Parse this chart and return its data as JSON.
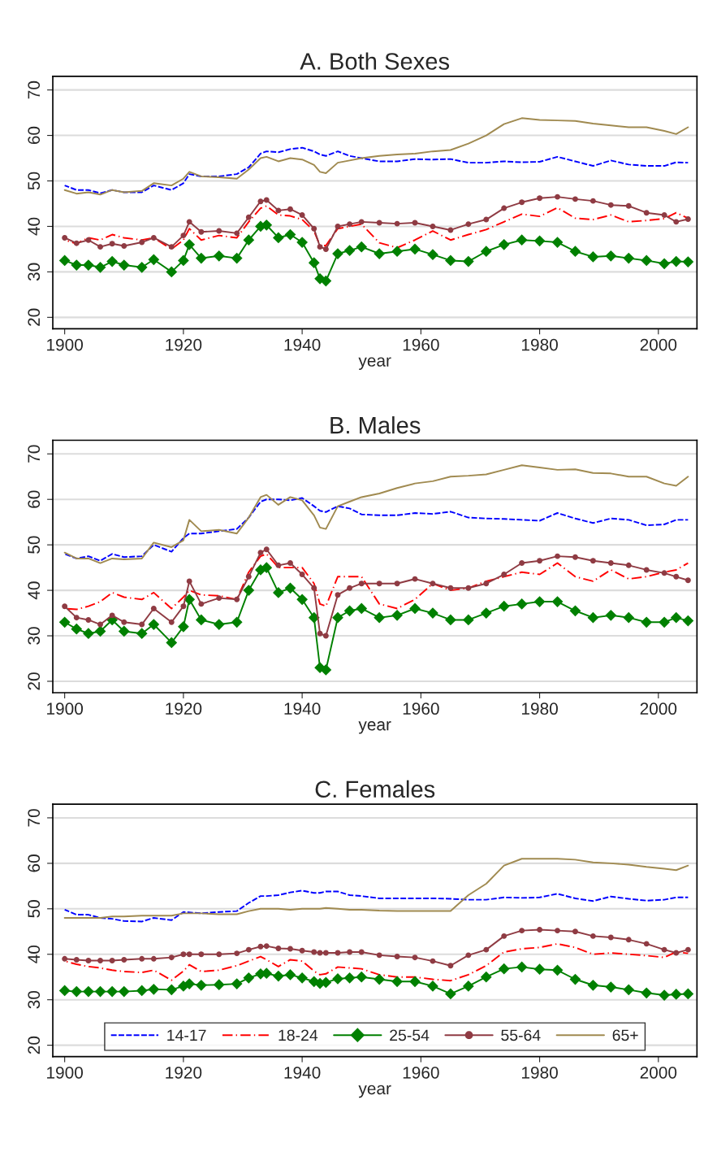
{
  "chart_data": [
    {
      "type": "line",
      "title": "A. Both Sexes",
      "xlabel": "year",
      "xlim": [
        1898,
        2006.5
      ],
      "ylim": [
        17.5,
        73
      ],
      "xticks": [
        1900,
        1920,
        1940,
        1960,
        1980,
        2000
      ],
      "yticks": [
        20,
        30,
        40,
        50,
        60,
        70
      ],
      "grid": "y",
      "legend": false,
      "x": [
        1900,
        1902,
        1904,
        1906,
        1908,
        1910,
        1913,
        1915,
        1918,
        1920,
        1921,
        1923,
        1926,
        1929,
        1931,
        1933,
        1934,
        1936,
        1938,
        1940,
        1942,
        1943,
        1944,
        1946,
        1948,
        1950,
        1953,
        1956,
        1959,
        1962,
        1965,
        1968,
        1971,
        1974,
        1977,
        1980,
        1983,
        1986,
        1989,
        1992,
        1995,
        1998,
        2001,
        2003,
        2005
      ],
      "series": [
        {
          "color": "#0000ff",
          "line_style": "dashed",
          "marker": "none",
          "values": [
            49,
            48,
            48,
            47.3,
            48,
            47.5,
            47.5,
            49,
            48,
            49.5,
            51.5,
            51,
            51,
            51.5,
            53,
            56,
            56.5,
            56.3,
            57,
            57.3,
            56.5,
            55.8,
            55.5,
            56.5,
            55.5,
            55,
            54.3,
            54.3,
            54.8,
            54.7,
            54.8,
            54,
            54,
            54.3,
            54.1,
            54.2,
            55.3,
            54.3,
            53.3,
            54.5,
            53.6,
            53.3,
            53.3,
            54.1,
            54
          ]
        },
        {
          "color": "#ff0000",
          "line_style": "dashdot",
          "marker": "none",
          "values": [
            37,
            36.2,
            37.5,
            37,
            38.2,
            37.5,
            37,
            37.5,
            35,
            37,
            39.5,
            37,
            38,
            37.5,
            41,
            44,
            44.5,
            42.5,
            42.3,
            41.5,
            39,
            35.8,
            35.8,
            39.5,
            40,
            40.5,
            36.4,
            35.3,
            37,
            39,
            37,
            38.2,
            39.3,
            41,
            42.7,
            42.2,
            44.1,
            41.8,
            41.5,
            42.5,
            41,
            41.3,
            41.7,
            43,
            41.8
          ]
        },
        {
          "color": "#008000",
          "line_style": "solid",
          "marker": "diamond",
          "values": [
            32.5,
            31.5,
            31.5,
            31,
            32.3,
            31.5,
            31,
            32.7,
            30,
            32.5,
            36,
            33,
            33.5,
            33,
            37,
            40,
            40.3,
            37.5,
            38.2,
            36.5,
            32,
            28.5,
            28,
            34,
            34.7,
            35.5,
            34,
            34.5,
            35,
            33.8,
            32.5,
            32.3,
            34.5,
            36,
            37,
            36.8,
            36.5,
            34.5,
            33.3,
            33.5,
            33,
            32.5,
            31.8,
            32.3,
            32.2
          ]
        },
        {
          "color": "#8f3b43",
          "line_style": "solid",
          "marker": "circle",
          "values": [
            37.5,
            36.3,
            37,
            35.5,
            36.2,
            35.7,
            36.5,
            37.5,
            35.5,
            38,
            41,
            38.8,
            39,
            38.5,
            42,
            45.5,
            45.8,
            43.5,
            43.8,
            42.5,
            39.5,
            35.5,
            35,
            40,
            40.5,
            41,
            40.8,
            40.6,
            40.8,
            40,
            39.2,
            40.5,
            41.5,
            44,
            45.3,
            46.2,
            46.5,
            46,
            45.6,
            44.7,
            44.5,
            43,
            42.5,
            41,
            41.6
          ]
        },
        {
          "color": "#a08a50",
          "line_style": "solid",
          "marker": "none",
          "values": [
            48,
            47.2,
            47.5,
            47,
            48,
            47.5,
            47.8,
            49.5,
            49,
            50.5,
            52,
            51,
            50.8,
            50.5,
            52.5,
            55,
            55.3,
            54.3,
            55,
            54.7,
            53.5,
            52,
            51.7,
            54,
            54.5,
            55,
            55.5,
            55.8,
            56,
            56.5,
            56.8,
            58.2,
            60,
            62.5,
            63.8,
            63.4,
            63.3,
            63.2,
            62.6,
            62.2,
            61.8,
            61.8,
            61,
            60.3,
            61.8
          ]
        }
      ]
    },
    {
      "type": "line",
      "title": "B. Males",
      "xlabel": "year",
      "xlim": [
        1898,
        2006.5
      ],
      "ylim": [
        17.5,
        73
      ],
      "xticks": [
        1900,
        1920,
        1940,
        1960,
        1980,
        2000
      ],
      "yticks": [
        20,
        30,
        40,
        50,
        60,
        70
      ],
      "grid": "y",
      "legend": false,
      "x": [
        1900,
        1902,
        1904,
        1906,
        1908,
        1910,
        1913,
        1915,
        1918,
        1920,
        1921,
        1923,
        1926,
        1929,
        1931,
        1933,
        1934,
        1936,
        1938,
        1940,
        1942,
        1943,
        1944,
        1946,
        1948,
        1950,
        1953,
        1956,
        1959,
        1962,
        1965,
        1968,
        1971,
        1974,
        1977,
        1980,
        1983,
        1986,
        1989,
        1992,
        1995,
        1998,
        2001,
        2003,
        2005
      ],
      "series": [
        {
          "color": "#0000ff",
          "line_style": "dashed",
          "marker": "none",
          "values": [
            48,
            47,
            47.5,
            46.5,
            48,
            47.3,
            47.5,
            50,
            48.5,
            51.5,
            52.5,
            52.5,
            53,
            53.5,
            56,
            59.5,
            60,
            60,
            59.8,
            60.3,
            58.5,
            57.5,
            57.2,
            58.5,
            58,
            56.7,
            56.5,
            56.5,
            57,
            56.8,
            57.3,
            56,
            55.8,
            55.7,
            55.5,
            55.3,
            57,
            55.8,
            54.8,
            55.8,
            55.5,
            54.3,
            54.5,
            55.5,
            55.5
          ]
        },
        {
          "color": "#ff0000",
          "line_style": "dashdot",
          "marker": "none",
          "values": [
            36,
            35.8,
            36.5,
            37.5,
            39.5,
            38.5,
            38,
            39.5,
            36,
            38.5,
            40,
            39,
            38.8,
            38,
            44,
            47.5,
            48,
            45,
            45,
            45,
            41.5,
            37,
            36.5,
            43,
            43,
            43,
            37,
            36,
            38,
            41.5,
            40,
            40.5,
            42,
            43,
            44,
            43.5,
            46,
            43,
            42,
            44.5,
            42.5,
            43,
            44,
            44.5,
            46
          ]
        },
        {
          "color": "#008000",
          "line_style": "solid",
          "marker": "diamond",
          "values": [
            33,
            31.5,
            30.5,
            31,
            33.5,
            31,
            30.5,
            32.5,
            28.5,
            32,
            38,
            33.5,
            32.5,
            33,
            40,
            44.5,
            45,
            39.5,
            40.5,
            38,
            34,
            23,
            22.5,
            34,
            35.5,
            36,
            34,
            34.5,
            36,
            35,
            33.5,
            33.5,
            35,
            36.5,
            37,
            37.5,
            37.5,
            35.5,
            34,
            34.5,
            34,
            33,
            33,
            34,
            33.3
          ]
        },
        {
          "color": "#8f3b43",
          "line_style": "solid",
          "marker": "circle",
          "values": [
            36.5,
            34,
            33.5,
            32.5,
            34.5,
            33,
            32.5,
            36,
            33,
            36.5,
            42,
            37,
            38.3,
            38,
            43,
            48.3,
            49,
            45.5,
            46,
            43.5,
            40.5,
            30.5,
            30,
            39,
            40.5,
            41.5,
            41.5,
            41.5,
            42.5,
            41.5,
            40.5,
            40.5,
            41.5,
            43.5,
            46,
            46.5,
            47.5,
            47.3,
            46.5,
            46,
            45.5,
            44.5,
            43.8,
            43,
            42.2
          ]
        },
        {
          "color": "#a08a50",
          "line_style": "solid",
          "marker": "none",
          "values": [
            48.3,
            47,
            47,
            46,
            47,
            46.8,
            47,
            50.5,
            49.5,
            51,
            55.5,
            53,
            53.3,
            52.5,
            56,
            60.5,
            61,
            58.8,
            60.5,
            59.8,
            56.5,
            53.8,
            53.5,
            58.5,
            59.5,
            60.5,
            61.3,
            62.5,
            63.5,
            64,
            65,
            65.2,
            65.5,
            66.5,
            67.5,
            67,
            66.5,
            66.6,
            65.8,
            65.7,
            65,
            65,
            63.5,
            63,
            65
          ]
        }
      ]
    },
    {
      "type": "line",
      "title": "C. Females",
      "xlabel": "year",
      "xlim": [
        1898,
        2006.5
      ],
      "ylim": [
        17.5,
        73
      ],
      "xticks": [
        1900,
        1920,
        1940,
        1960,
        1980,
        2000
      ],
      "yticks": [
        20,
        30,
        40,
        50,
        60,
        70
      ],
      "grid": "y",
      "legend": "bottom",
      "x": [
        1900,
        1902,
        1904,
        1906,
        1908,
        1910,
        1913,
        1915,
        1918,
        1920,
        1921,
        1923,
        1926,
        1929,
        1931,
        1933,
        1934,
        1936,
        1938,
        1940,
        1942,
        1943,
        1944,
        1946,
        1948,
        1950,
        1953,
        1956,
        1959,
        1962,
        1965,
        1968,
        1971,
        1974,
        1977,
        1980,
        1983,
        1986,
        1989,
        1992,
        1995,
        1998,
        2001,
        2003,
        2005
      ],
      "series": [
        {
          "name": "14-17",
          "color": "#0000ff",
          "line_style": "dashed",
          "marker": "none",
          "values": [
            49.8,
            48.7,
            48.7,
            48,
            47.8,
            47.3,
            47.2,
            48,
            47.5,
            49.3,
            49.2,
            49,
            49.3,
            49.5,
            51.3,
            52.8,
            52.8,
            53,
            53.6,
            54,
            53.5,
            53.5,
            53.8,
            53.8,
            53,
            52.8,
            52.3,
            52.3,
            52.3,
            52.3,
            52.2,
            52,
            52,
            52.5,
            52.4,
            52.5,
            53.3,
            52.3,
            51.7,
            52.7,
            52.2,
            51.8,
            52,
            52.5,
            52.5
          ]
        },
        {
          "name": "18-24",
          "color": "#ff0000",
          "line_style": "dashdot",
          "marker": "none",
          "values": [
            38.5,
            37.8,
            37.3,
            37,
            36.5,
            36.2,
            36,
            36.5,
            34.3,
            36.3,
            37.7,
            36.2,
            36.5,
            37.5,
            38.5,
            39.5,
            38.8,
            37.3,
            38.8,
            38.5,
            36.3,
            35.5,
            35.7,
            37.2,
            37,
            36.8,
            35.5,
            35,
            35,
            34.5,
            34.2,
            35.5,
            37.5,
            40.5,
            41.2,
            41.5,
            42.3,
            41.5,
            40,
            40.3,
            40,
            39.7,
            39.3,
            40.5,
            40.2
          ]
        },
        {
          "name": "25-54",
          "color": "#008000",
          "line_style": "solid",
          "marker": "diamond",
          "values": [
            32,
            31.8,
            31.8,
            31.8,
            31.8,
            31.8,
            32,
            32.3,
            32.2,
            33,
            33.5,
            33.2,
            33.3,
            33.5,
            34.8,
            35.7,
            35.8,
            35.2,
            35.5,
            34.8,
            34,
            33.6,
            33.8,
            34.6,
            34.8,
            35,
            34.5,
            34,
            34,
            33,
            31.3,
            33,
            35,
            36.8,
            37.2,
            36.7,
            36.5,
            34.5,
            33.2,
            32.8,
            32.2,
            31.5,
            31,
            31.2,
            31.3
          ]
        },
        {
          "name": "55-64",
          "color": "#8f3b43",
          "line_style": "solid",
          "marker": "circle",
          "values": [
            39,
            38.8,
            38.6,
            38.6,
            38.6,
            38.8,
            39,
            39,
            39.3,
            40,
            40,
            40,
            40,
            40.2,
            41,
            41.7,
            41.8,
            41.3,
            41.2,
            40.8,
            40.5,
            40.3,
            40.3,
            40.3,
            40.5,
            40.5,
            39.8,
            39.5,
            39.3,
            38.5,
            37.5,
            39.8,
            41,
            44,
            45.2,
            45.4,
            45.2,
            45,
            44,
            43.7,
            43.2,
            42.3,
            41,
            40.3,
            41
          ]
        },
        {
          "name": "65+",
          "color": "#a08a50",
          "line_style": "solid",
          "marker": "none",
          "values": [
            48,
            48,
            48,
            48,
            48.3,
            48.3,
            48.5,
            48.5,
            48.5,
            49,
            49,
            49,
            48.8,
            48.8,
            49.5,
            50,
            50,
            50,
            49.8,
            50,
            50,
            50,
            50.2,
            50,
            49.8,
            49.8,
            49.6,
            49.5,
            49.5,
            49.5,
            49.5,
            53,
            55.5,
            59.5,
            61,
            61,
            61,
            60.8,
            60.2,
            60,
            59.7,
            59.2,
            58.8,
            58.5,
            59.5
          ]
        }
      ]
    }
  ]
}
